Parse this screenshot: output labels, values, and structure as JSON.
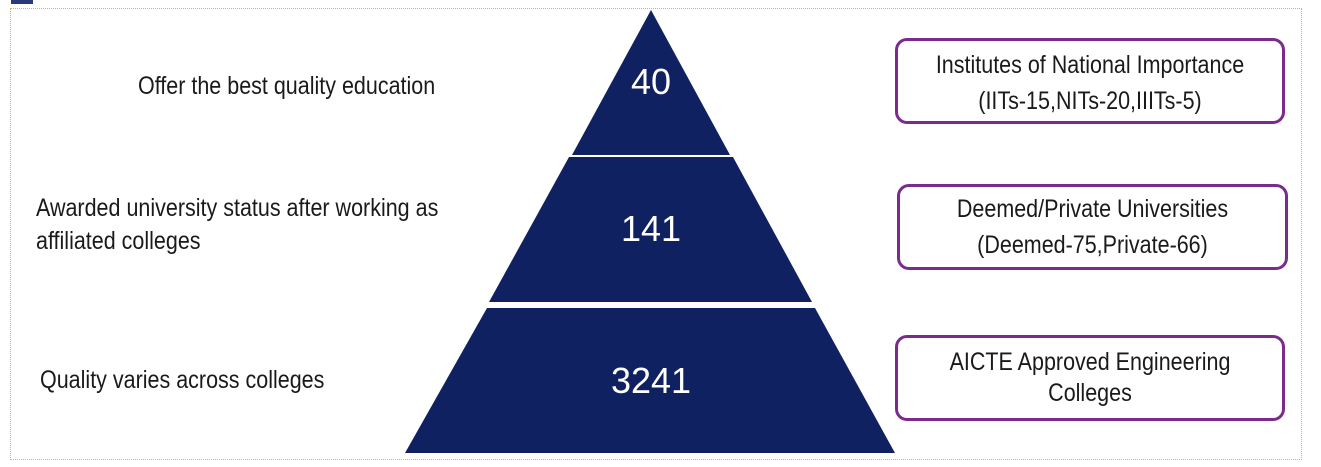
{
  "diagram": {
    "tiers": [
      {
        "value": "40",
        "left_label": [
          "Offer the best quality education"
        ],
        "right_label": [
          "Institutes of National Importance",
          "(IITs-15,NITs-20,IIITs-5)"
        ]
      },
      {
        "value": "141",
        "left_label": [
          "Awarded university status after working as",
          "affiliated colleges"
        ],
        "right_label": [
          "Deemed/Private Universities",
          "(Deemed-75,Private-66)"
        ]
      },
      {
        "value": "3241",
        "left_label": [
          "Quality varies across colleges"
        ],
        "right_label": [
          "AICTE Approved Engineering",
          "Colleges"
        ]
      }
    ],
    "colors": {
      "pyramid_fill": "#0f2160",
      "box_border": "#7b2b8e",
      "frame_border": "#d9b54a"
    }
  }
}
